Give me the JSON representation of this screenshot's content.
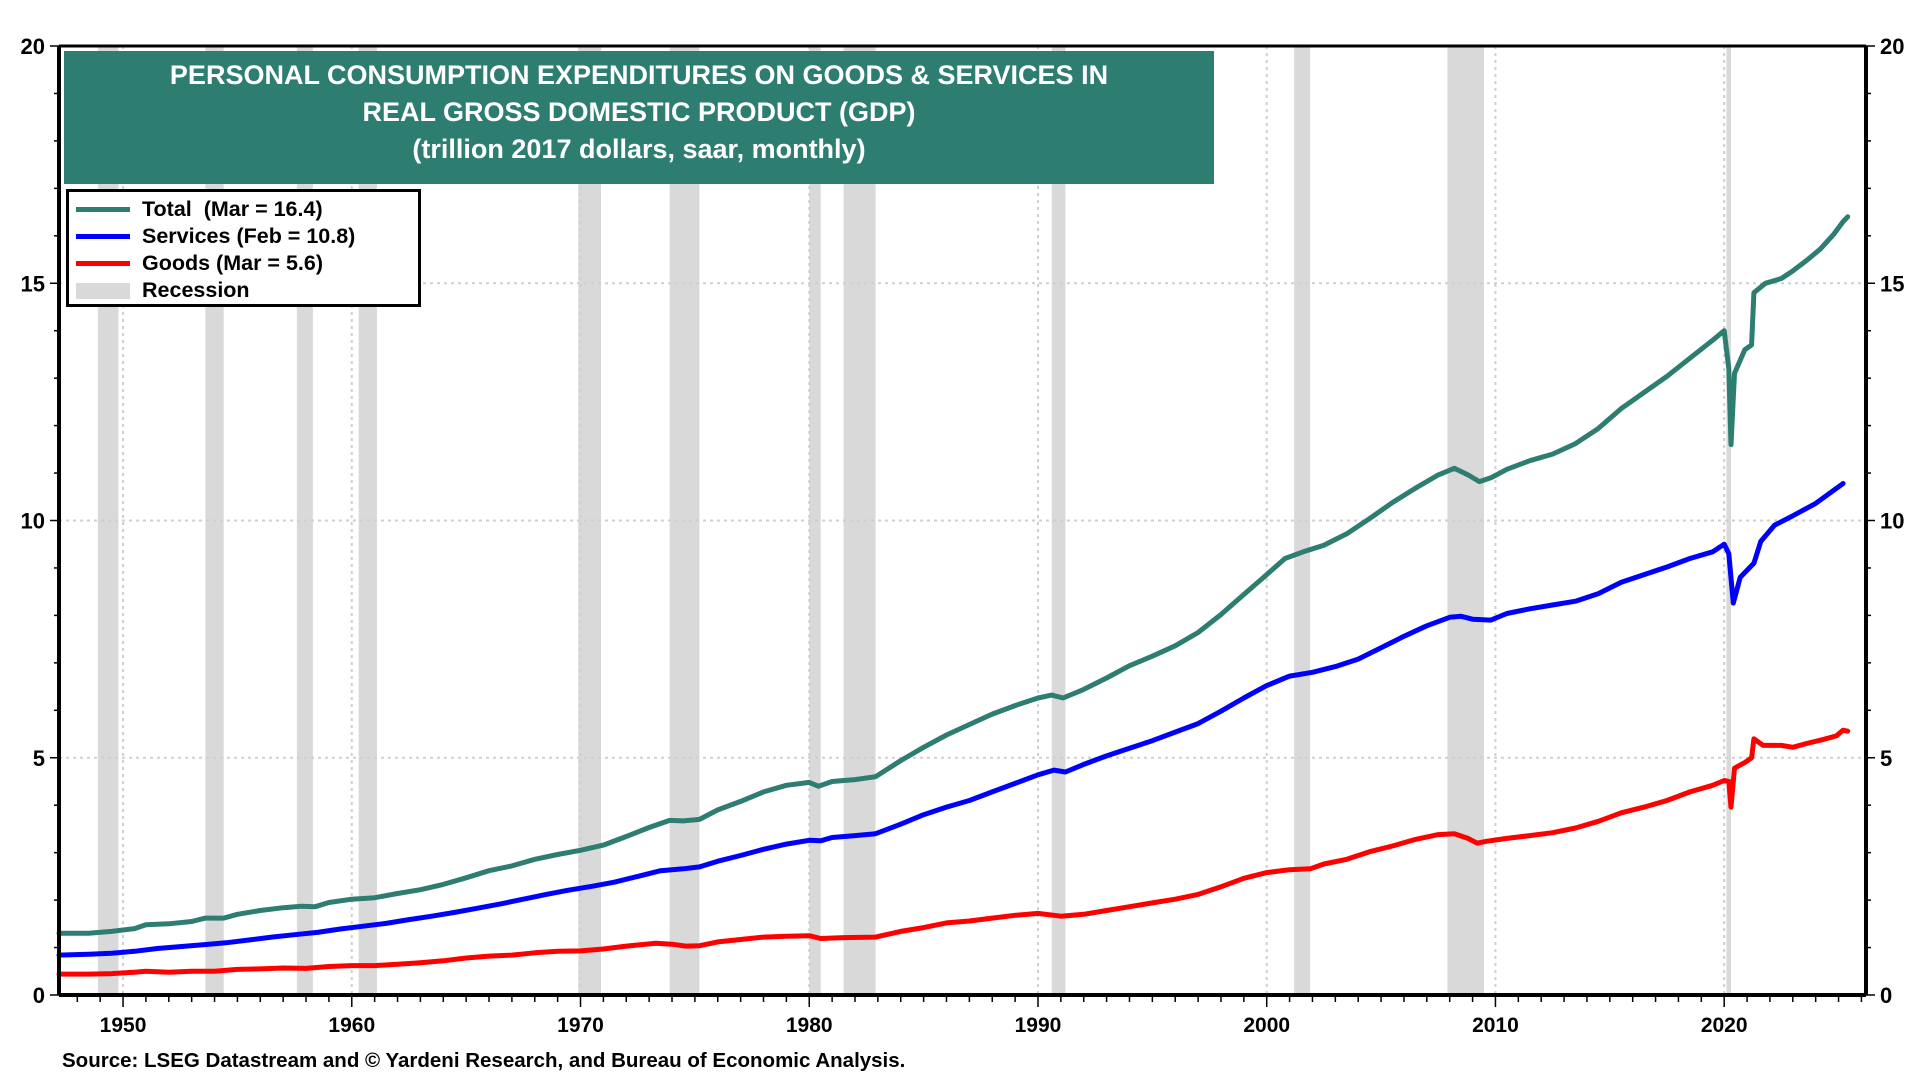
{
  "chart_data": {
    "type": "line",
    "title_lines": [
      "PERSONAL CONSUMPTION EXPENDITURES ON GOODS & SERVICES IN",
      "REAL GROSS DOMESTIC PRODUCT (GDP)",
      "(trillion 2017 dollars, saar, monthly)"
    ],
    "xlabel": "",
    "ylabel": "",
    "xlim": [
      1947.2,
      2026.2
    ],
    "ylim": [
      0,
      20
    ],
    "x_ticks": [
      1950,
      1960,
      1970,
      1980,
      1990,
      2000,
      2010,
      2020
    ],
    "y_ticks_left": [
      0,
      5,
      10,
      15,
      20
    ],
    "y_ticks_right": [
      0,
      5,
      10,
      15,
      20
    ],
    "grid": "dotted at major ticks",
    "legend_position": "top-left",
    "legend": [
      {
        "label": "Total  (Mar = 16.4)",
        "color": "#2e7d71",
        "kind": "line"
      },
      {
        "label": "Services (Feb = 10.8)",
        "color": "#0000ff",
        "kind": "line"
      },
      {
        "label": "Goods (Mar = 5.6)",
        "color": "#ff0000",
        "kind": "line"
      },
      {
        "label": "Recession",
        "color": "#d9d9d9",
        "kind": "area"
      }
    ],
    "recessions": [
      [
        1948.9,
        1949.8
      ],
      [
        1953.6,
        1954.4
      ],
      [
        1957.6,
        1958.3
      ],
      [
        1960.3,
        1961.1
      ],
      [
        1969.9,
        1970.9
      ],
      [
        1973.9,
        1975.2
      ],
      [
        1980.0,
        1980.5
      ],
      [
        1981.5,
        1982.9
      ],
      [
        1990.6,
        1991.2
      ],
      [
        2001.2,
        2001.9
      ],
      [
        2007.9,
        2009.5
      ],
      [
        2020.1,
        2020.3
      ]
    ],
    "series": [
      {
        "name": "Total",
        "color": "#2e7d71",
        "points": [
          [
            1947.2,
            1.3
          ],
          [
            1948.5,
            1.3
          ],
          [
            1949.5,
            1.34
          ],
          [
            1950.5,
            1.4
          ],
          [
            1951.0,
            1.48
          ],
          [
            1952.0,
            1.5
          ],
          [
            1953.0,
            1.55
          ],
          [
            1953.6,
            1.62
          ],
          [
            1954.4,
            1.62
          ],
          [
            1955.0,
            1.7
          ],
          [
            1956.0,
            1.78
          ],
          [
            1957.0,
            1.84
          ],
          [
            1957.8,
            1.87
          ],
          [
            1958.4,
            1.86
          ],
          [
            1959.0,
            1.95
          ],
          [
            1960.0,
            2.02
          ],
          [
            1961.0,
            2.05
          ],
          [
            1962.0,
            2.14
          ],
          [
            1963.0,
            2.22
          ],
          [
            1964.0,
            2.33
          ],
          [
            1965.0,
            2.47
          ],
          [
            1966.0,
            2.62
          ],
          [
            1967.0,
            2.72
          ],
          [
            1968.0,
            2.86
          ],
          [
            1969.0,
            2.96
          ],
          [
            1970.0,
            3.05
          ],
          [
            1971.0,
            3.16
          ],
          [
            1972.0,
            3.34
          ],
          [
            1973.0,
            3.53
          ],
          [
            1973.9,
            3.68
          ],
          [
            1974.5,
            3.67
          ],
          [
            1975.2,
            3.7
          ],
          [
            1976.0,
            3.9
          ],
          [
            1977.0,
            4.08
          ],
          [
            1978.0,
            4.28
          ],
          [
            1979.0,
            4.42
          ],
          [
            1980.0,
            4.48
          ],
          [
            1980.4,
            4.4
          ],
          [
            1981.0,
            4.5
          ],
          [
            1982.0,
            4.54
          ],
          [
            1982.9,
            4.6
          ],
          [
            1984.0,
            4.94
          ],
          [
            1985.0,
            5.22
          ],
          [
            1986.0,
            5.48
          ],
          [
            1987.0,
            5.7
          ],
          [
            1988.0,
            5.92
          ],
          [
            1989.0,
            6.1
          ],
          [
            1990.0,
            6.26
          ],
          [
            1990.6,
            6.32
          ],
          [
            1991.1,
            6.26
          ],
          [
            1992.0,
            6.44
          ],
          [
            1993.0,
            6.68
          ],
          [
            1994.0,
            6.94
          ],
          [
            1995.0,
            7.14
          ],
          [
            1996.0,
            7.36
          ],
          [
            1997.0,
            7.64
          ],
          [
            1998.0,
            8.02
          ],
          [
            1999.0,
            8.44
          ],
          [
            2000.0,
            8.86
          ],
          [
            2000.8,
            9.2
          ],
          [
            2001.6,
            9.34
          ],
          [
            2002.5,
            9.48
          ],
          [
            2003.5,
            9.72
          ],
          [
            2004.5,
            10.04
          ],
          [
            2005.5,
            10.38
          ],
          [
            2006.5,
            10.68
          ],
          [
            2007.5,
            10.96
          ],
          [
            2008.2,
            11.1
          ],
          [
            2008.8,
            10.96
          ],
          [
            2009.3,
            10.82
          ],
          [
            2009.8,
            10.9
          ],
          [
            2010.5,
            11.08
          ],
          [
            2011.5,
            11.26
          ],
          [
            2012.5,
            11.4
          ],
          [
            2013.5,
            11.62
          ],
          [
            2014.5,
            11.94
          ],
          [
            2015.5,
            12.36
          ],
          [
            2016.5,
            12.7
          ],
          [
            2017.5,
            13.04
          ],
          [
            2018.5,
            13.42
          ],
          [
            2019.5,
            13.8
          ],
          [
            2020.0,
            14.0
          ],
          [
            2020.2,
            13.2
          ],
          [
            2020.3,
            11.6
          ],
          [
            2020.45,
            13.1
          ],
          [
            2020.9,
            13.6
          ],
          [
            2021.2,
            13.7
          ],
          [
            2021.3,
            14.8
          ],
          [
            2021.8,
            15.0
          ],
          [
            2022.5,
            15.1
          ],
          [
            2023.0,
            15.26
          ],
          [
            2023.6,
            15.48
          ],
          [
            2024.2,
            15.72
          ],
          [
            2024.8,
            16.04
          ],
          [
            2025.2,
            16.3
          ],
          [
            2025.4,
            16.4
          ]
        ]
      },
      {
        "name": "Services",
        "color": "#0000ff",
        "points": [
          [
            1947.2,
            0.84
          ],
          [
            1948.5,
            0.86
          ],
          [
            1949.5,
            0.88
          ],
          [
            1950.5,
            0.92
          ],
          [
            1951.5,
            0.98
          ],
          [
            1952.5,
            1.02
          ],
          [
            1953.5,
            1.06
          ],
          [
            1954.5,
            1.1
          ],
          [
            1955.5,
            1.16
          ],
          [
            1956.5,
            1.22
          ],
          [
            1957.5,
            1.27
          ],
          [
            1958.5,
            1.32
          ],
          [
            1959.5,
            1.39
          ],
          [
            1960.5,
            1.45
          ],
          [
            1961.5,
            1.51
          ],
          [
            1962.5,
            1.59
          ],
          [
            1963.5,
            1.66
          ],
          [
            1964.5,
            1.74
          ],
          [
            1965.5,
            1.83
          ],
          [
            1966.5,
            1.92
          ],
          [
            1967.5,
            2.02
          ],
          [
            1968.5,
            2.12
          ],
          [
            1969.5,
            2.21
          ],
          [
            1970.5,
            2.29
          ],
          [
            1971.5,
            2.38
          ],
          [
            1972.5,
            2.5
          ],
          [
            1973.5,
            2.62
          ],
          [
            1974.5,
            2.66
          ],
          [
            1975.2,
            2.7
          ],
          [
            1976.0,
            2.82
          ],
          [
            1977.0,
            2.94
          ],
          [
            1978.0,
            3.07
          ],
          [
            1979.0,
            3.18
          ],
          [
            1980.0,
            3.26
          ],
          [
            1980.5,
            3.25
          ],
          [
            1981.0,
            3.32
          ],
          [
            1982.0,
            3.36
          ],
          [
            1982.9,
            3.4
          ],
          [
            1984.0,
            3.6
          ],
          [
            1985.0,
            3.8
          ],
          [
            1986.0,
            3.96
          ],
          [
            1987.0,
            4.1
          ],
          [
            1988.0,
            4.28
          ],
          [
            1989.0,
            4.46
          ],
          [
            1990.0,
            4.64
          ],
          [
            1990.7,
            4.74
          ],
          [
            1991.2,
            4.7
          ],
          [
            1992.0,
            4.86
          ],
          [
            1993.0,
            5.04
          ],
          [
            1994.0,
            5.2
          ],
          [
            1995.0,
            5.36
          ],
          [
            1996.0,
            5.54
          ],
          [
            1997.0,
            5.72
          ],
          [
            1998.0,
            5.98
          ],
          [
            1999.0,
            6.26
          ],
          [
            2000.0,
            6.52
          ],
          [
            2001.0,
            6.72
          ],
          [
            2002.0,
            6.8
          ],
          [
            2003.0,
            6.92
          ],
          [
            2004.0,
            7.08
          ],
          [
            2005.0,
            7.32
          ],
          [
            2006.0,
            7.56
          ],
          [
            2007.0,
            7.78
          ],
          [
            2008.0,
            7.96
          ],
          [
            2008.5,
            7.98
          ],
          [
            2009.0,
            7.92
          ],
          [
            2009.8,
            7.9
          ],
          [
            2010.5,
            8.04
          ],
          [
            2011.5,
            8.14
          ],
          [
            2012.5,
            8.22
          ],
          [
            2013.5,
            8.3
          ],
          [
            2014.5,
            8.46
          ],
          [
            2015.5,
            8.7
          ],
          [
            2016.5,
            8.86
          ],
          [
            2017.5,
            9.02
          ],
          [
            2018.5,
            9.2
          ],
          [
            2019.5,
            9.34
          ],
          [
            2020.0,
            9.5
          ],
          [
            2020.2,
            9.3
          ],
          [
            2020.4,
            8.26
          ],
          [
            2020.7,
            8.8
          ],
          [
            2021.3,
            9.1
          ],
          [
            2021.6,
            9.56
          ],
          [
            2022.2,
            9.9
          ],
          [
            2023.0,
            10.1
          ],
          [
            2024.0,
            10.36
          ],
          [
            2025.2,
            10.78
          ]
        ]
      },
      {
        "name": "Goods",
        "color": "#ff0000",
        "points": [
          [
            1947.2,
            0.44
          ],
          [
            1948.5,
            0.44
          ],
          [
            1949.5,
            0.45
          ],
          [
            1950.5,
            0.48
          ],
          [
            1951.0,
            0.5
          ],
          [
            1952.0,
            0.48
          ],
          [
            1953.0,
            0.5
          ],
          [
            1954.0,
            0.5
          ],
          [
            1955.0,
            0.54
          ],
          [
            1956.0,
            0.55
          ],
          [
            1957.0,
            0.57
          ],
          [
            1958.0,
            0.56
          ],
          [
            1959.0,
            0.6
          ],
          [
            1960.0,
            0.62
          ],
          [
            1961.0,
            0.62
          ],
          [
            1962.0,
            0.65
          ],
          [
            1963.0,
            0.68
          ],
          [
            1964.0,
            0.72
          ],
          [
            1965.0,
            0.78
          ],
          [
            1966.0,
            0.82
          ],
          [
            1967.0,
            0.84
          ],
          [
            1968.0,
            0.89
          ],
          [
            1969.0,
            0.92
          ],
          [
            1970.0,
            0.93
          ],
          [
            1971.0,
            0.97
          ],
          [
            1972.0,
            1.03
          ],
          [
            1973.3,
            1.09
          ],
          [
            1974.0,
            1.07
          ],
          [
            1974.6,
            1.03
          ],
          [
            1975.2,
            1.04
          ],
          [
            1976.0,
            1.12
          ],
          [
            1977.0,
            1.17
          ],
          [
            1978.0,
            1.22
          ],
          [
            1979.0,
            1.24
          ],
          [
            1980.0,
            1.25
          ],
          [
            1980.5,
            1.19
          ],
          [
            1981.5,
            1.21
          ],
          [
            1982.9,
            1.22
          ],
          [
            1984.0,
            1.34
          ],
          [
            1985.0,
            1.42
          ],
          [
            1986.0,
            1.52
          ],
          [
            1987.0,
            1.56
          ],
          [
            1988.0,
            1.62
          ],
          [
            1989.0,
            1.68
          ],
          [
            1990.0,
            1.72
          ],
          [
            1991.0,
            1.66
          ],
          [
            1992.0,
            1.7
          ],
          [
            1993.0,
            1.78
          ],
          [
            1994.0,
            1.86
          ],
          [
            1995.0,
            1.94
          ],
          [
            1996.0,
            2.02
          ],
          [
            1997.0,
            2.12
          ],
          [
            1998.0,
            2.28
          ],
          [
            1999.0,
            2.46
          ],
          [
            2000.0,
            2.58
          ],
          [
            2001.0,
            2.64
          ],
          [
            2001.9,
            2.66
          ],
          [
            2002.5,
            2.76
          ],
          [
            2003.5,
            2.86
          ],
          [
            2004.5,
            3.02
          ],
          [
            2005.5,
            3.14
          ],
          [
            2006.5,
            3.28
          ],
          [
            2007.5,
            3.38
          ],
          [
            2008.2,
            3.4
          ],
          [
            2008.8,
            3.3
          ],
          [
            2009.2,
            3.2
          ],
          [
            2009.6,
            3.24
          ],
          [
            2010.5,
            3.3
          ],
          [
            2011.5,
            3.36
          ],
          [
            2012.5,
            3.42
          ],
          [
            2013.5,
            3.52
          ],
          [
            2014.5,
            3.66
          ],
          [
            2015.5,
            3.84
          ],
          [
            2016.5,
            3.96
          ],
          [
            2017.5,
            4.1
          ],
          [
            2018.5,
            4.28
          ],
          [
            2019.5,
            4.42
          ],
          [
            2020.0,
            4.52
          ],
          [
            2020.2,
            4.5
          ],
          [
            2020.3,
            3.96
          ],
          [
            2020.45,
            4.78
          ],
          [
            2020.9,
            4.9
          ],
          [
            2021.2,
            5.0
          ],
          [
            2021.3,
            5.4
          ],
          [
            2021.7,
            5.26
          ],
          [
            2022.5,
            5.26
          ],
          [
            2023.0,
            5.22
          ],
          [
            2023.6,
            5.3
          ],
          [
            2024.3,
            5.38
          ],
          [
            2024.9,
            5.46
          ],
          [
            2025.2,
            5.58
          ],
          [
            2025.4,
            5.56
          ]
        ]
      }
    ],
    "source": "Source: LSEG Datastream and © Yardeni Research, and Bureau of Economic Analysis."
  }
}
